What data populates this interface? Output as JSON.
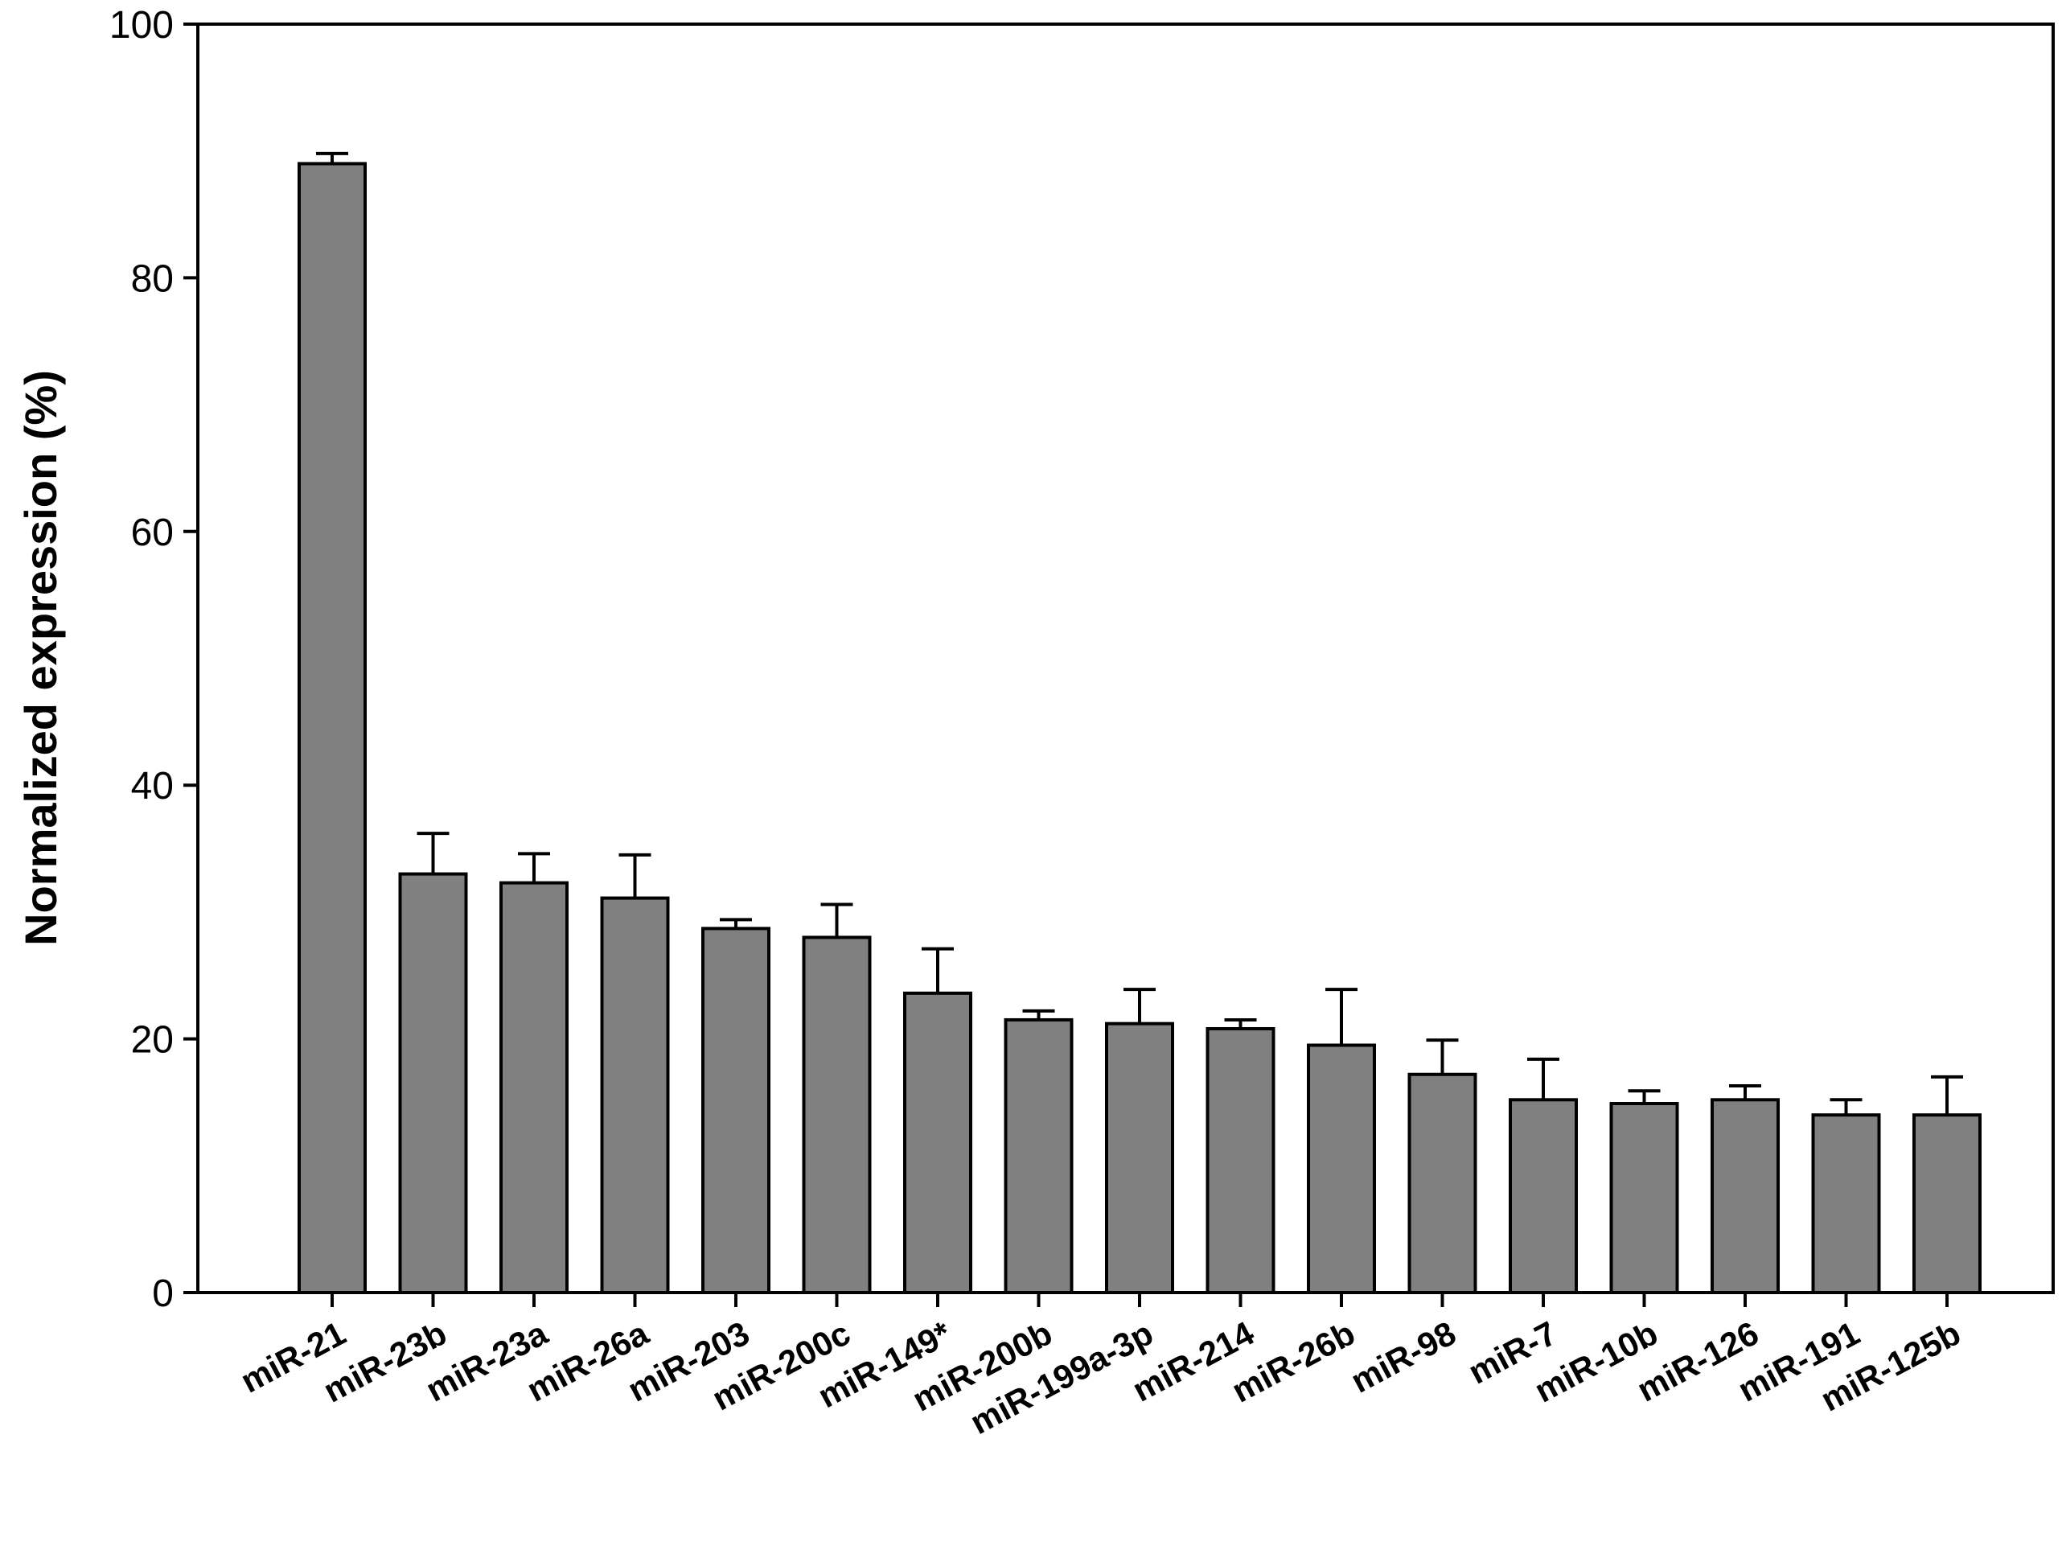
{
  "chart_data": {
    "type": "bar",
    "y_label": "Normalized expression (%)",
    "categories": [
      "miR-21",
      "miR-23b",
      "miR-23a",
      "miR-26a",
      "miR-203",
      "miR-200c",
      "miR-149*",
      "miR-200b",
      "miR-199a-3p",
      "miR-214",
      "miR-26b",
      "miR-98",
      "miR-7",
      "miR-10b",
      "miR-126",
      "miR-191",
      "miR-125b"
    ],
    "values": [
      89.0,
      33.0,
      32.3,
      31.1,
      28.7,
      28.0,
      23.6,
      21.5,
      21.2,
      20.8,
      19.5,
      17.2,
      15.2,
      14.9,
      15.2,
      14.0,
      14.0
    ],
    "errors": [
      0.8,
      3.2,
      2.3,
      3.4,
      0.7,
      2.6,
      3.5,
      0.7,
      2.7,
      0.7,
      4.4,
      2.7,
      3.2,
      1.0,
      1.1,
      1.2,
      3.0
    ],
    "color": "#808080",
    "ylim": [
      0,
      100
    ],
    "yticks": [
      0,
      20,
      40,
      60,
      80,
      100
    ],
    "grid": false
  }
}
